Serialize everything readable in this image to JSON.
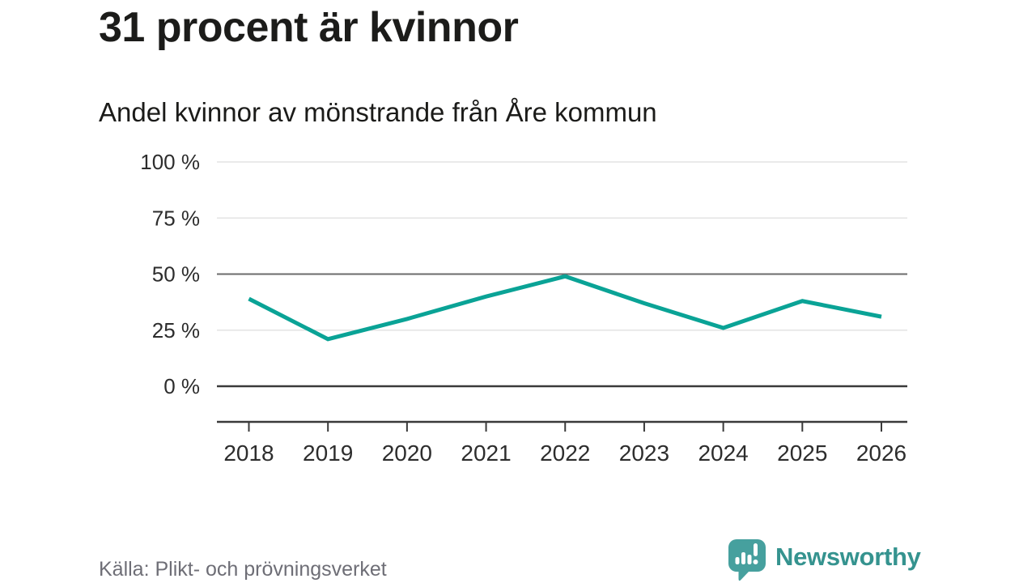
{
  "header": {
    "title": "31 procent är kvinnor",
    "subtitle": "Andel kvinnor av mönstrande från Åre kommun"
  },
  "footer": {
    "source": "Källa: Plikt- och prövningsverket",
    "logo_text": "Newsworthy"
  },
  "chart_data": {
    "type": "line",
    "title": "31 procent är kvinnor",
    "subtitle": "Andel kvinnor av mönstrande från Åre kommun",
    "categories": [
      "2018",
      "2019",
      "2020",
      "2021",
      "2022",
      "2023",
      "2024",
      "2025",
      "2026"
    ],
    "series": [
      {
        "name": "Andel kvinnor av mönstrande",
        "values": [
          39,
          21,
          30,
          40,
          49,
          37,
          26,
          38,
          31
        ]
      }
    ],
    "unit": "%",
    "ylim": [
      0,
      100
    ],
    "y_ticks": [
      0,
      25,
      50,
      75,
      100
    ],
    "y_tick_labels": [
      "0 %",
      "25 %",
      "50 %",
      "75 %",
      "100 %"
    ],
    "emphasized_gridline_value": 50,
    "baseline_value": 0,
    "grid": "horizontal",
    "legend_position": "none",
    "colors": {
      "line": "#0aa396",
      "grid_light": "#e3e3e3",
      "grid_emphasis": "#6b6b6b",
      "axis_dark": "#3a3a3a",
      "tick_label": "#2d2d2d"
    },
    "source": "Källa: Plikt- och prövningsverket"
  },
  "logo_icon": {
    "name": "newsworthy-speech-bubble-chart-icon",
    "bubble_color": "#46a09e",
    "glyph_color": "#ffffff"
  }
}
